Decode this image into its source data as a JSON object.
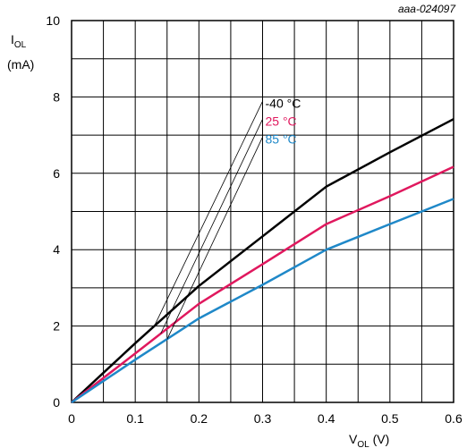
{
  "chart_data": {
    "type": "line",
    "figure_id": "aaa-024097",
    "ylabel": {
      "main": "I",
      "sub": "OL",
      "unit": "(mA)"
    },
    "xlabel": {
      "main": "V",
      "sub": "OL",
      "unit": " (V)"
    },
    "xlim": [
      0,
      0.6
    ],
    "ylim": [
      0,
      10
    ],
    "x_ticks": [
      0,
      0.1,
      0.2,
      0.3,
      0.4,
      0.5,
      0.6
    ],
    "x_tick_labels": [
      "0",
      "0.1",
      "0.2",
      "0.3",
      "0.4",
      "0.5",
      "0.6"
    ],
    "y_ticks": [
      0,
      2,
      4,
      6,
      8,
      10
    ],
    "y_tick_labels": [
      "0",
      "2",
      "4",
      "6",
      "8",
      "10"
    ],
    "grid": true,
    "series": [
      {
        "name": "-40 °C",
        "color": "#000000",
        "points": [
          [
            0,
            0
          ],
          [
            0.1,
            1.55
          ],
          [
            0.2,
            3.05
          ],
          [
            0.3,
            4.35
          ],
          [
            0.4,
            5.65
          ],
          [
            0.5,
            6.55
          ],
          [
            0.6,
            7.42
          ]
        ],
        "pointer_target": [
          0.13,
          2.0
        ]
      },
      {
        "name": "25 °C",
        "color": "#e0185e",
        "points": [
          [
            0,
            0
          ],
          [
            0.1,
            1.28
          ],
          [
            0.2,
            2.58
          ],
          [
            0.3,
            3.62
          ],
          [
            0.4,
            4.67
          ],
          [
            0.5,
            5.4
          ],
          [
            0.6,
            6.17
          ]
        ],
        "pointer_target": [
          0.14,
          1.8
        ]
      },
      {
        "name": "85 °C",
        "color": "#1f88c8",
        "points": [
          [
            0,
            0
          ],
          [
            0.1,
            1.12
          ],
          [
            0.2,
            2.2
          ],
          [
            0.3,
            3.08
          ],
          [
            0.4,
            4.0
          ],
          [
            0.5,
            4.67
          ],
          [
            0.6,
            5.33
          ]
        ],
        "pointer_target": [
          0.15,
          1.65
        ]
      }
    ]
  }
}
